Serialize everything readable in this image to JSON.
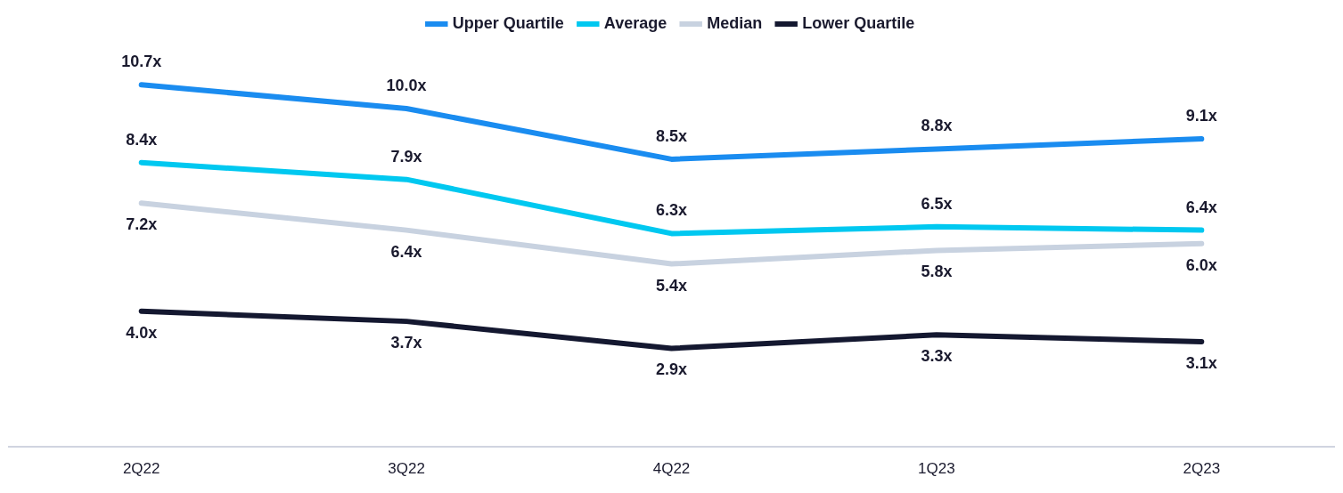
{
  "chart_data": {
    "type": "line",
    "categories": [
      "2Q22",
      "3Q22",
      "4Q22",
      "1Q23",
      "2Q23"
    ],
    "tick_labels": "x",
    "grid": false,
    "legend": "top",
    "marker": "none",
    "line_style": "solid",
    "series": [
      {
        "name": "Upper Quartile",
        "color": "#1a8cf0",
        "values": [
          10.7,
          10.0,
          8.5,
          8.8,
          9.1
        ],
        "value_labels": [
          "10.7x",
          "10.0x",
          "8.5x",
          "8.8x",
          "9.1x"
        ]
      },
      {
        "name": "Average",
        "color": "#00c8f0",
        "values": [
          8.4,
          7.9,
          6.3,
          6.5,
          6.4
        ],
        "value_labels": [
          "8.4x",
          "7.9x",
          "6.3x",
          "6.5x",
          "6.4x"
        ]
      },
      {
        "name": "Median",
        "color": "#c8d2e0",
        "values": [
          7.2,
          6.4,
          5.4,
          5.8,
          6.0
        ],
        "value_labels": [
          "7.2x",
          "6.4x",
          "5.4x",
          "5.8x",
          "6.0x"
        ]
      },
      {
        "name": "Lower Quartile",
        "color": "#141830",
        "values": [
          4.0,
          3.7,
          2.9,
          3.3,
          3.1
        ],
        "value_labels": [
          "4.0x",
          "3.7x",
          "2.9x",
          "3.3x",
          "3.1x"
        ]
      }
    ]
  }
}
